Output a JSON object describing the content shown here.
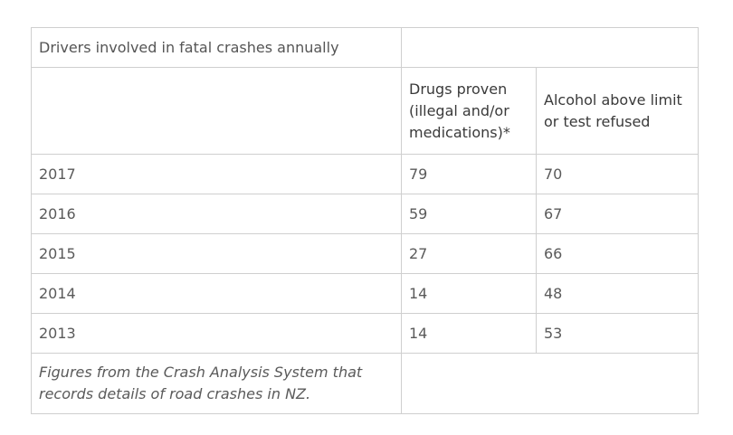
{
  "table": {
    "title": "Drivers involved in fatal crashes annually",
    "headers": [
      "",
      "Drugs proven (illegal and/or medications)*",
      "Alcohol above limit or test refused"
    ],
    "rows": [
      {
        "year": "2017",
        "drugs": "79",
        "alcohol": "70"
      },
      {
        "year": "2016",
        "drugs": "59",
        "alcohol": "67"
      },
      {
        "year": "2015",
        "drugs": "27",
        "alcohol": "66"
      },
      {
        "year": "2014",
        "drugs": "14",
        "alcohol": "48"
      },
      {
        "year": "2013",
        "drugs": "14",
        "alcohol": "53"
      }
    ],
    "footnote": "Figures from the Crash Analysis System that records details of road crashes in NZ."
  }
}
